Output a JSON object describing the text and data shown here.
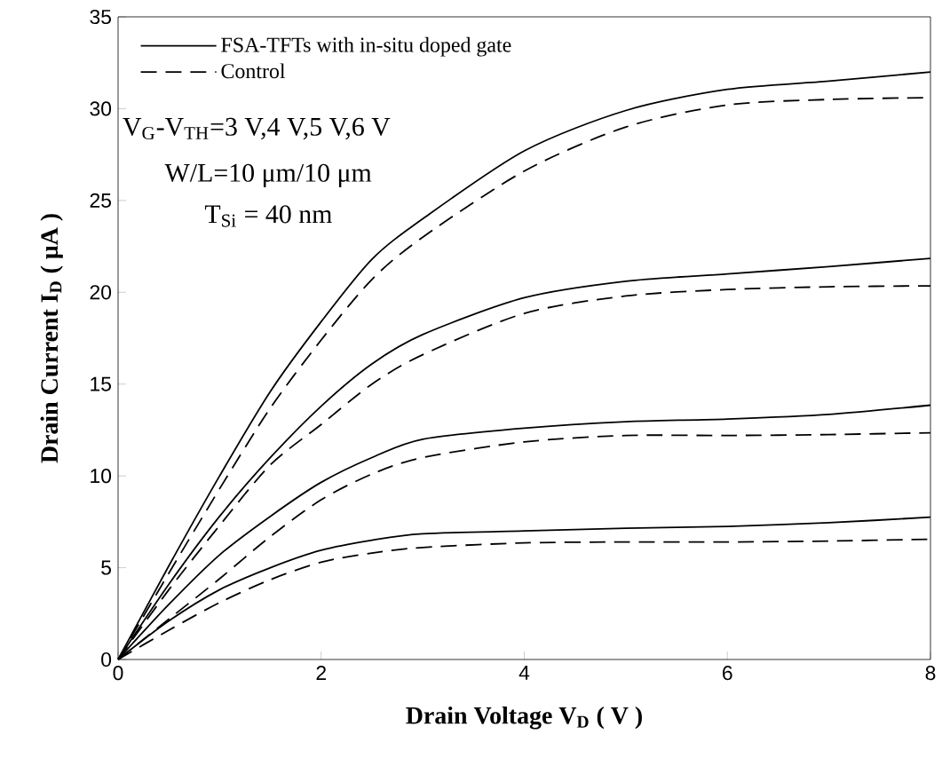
{
  "chart_data": {
    "type": "line",
    "xlabel": "Drain Voltage V$_{D}$ ( V )",
    "ylabel": "Drain Current I$_{D}$ ( μA )",
    "x": [
      0,
      0.5,
      1,
      1.5,
      2,
      2.5,
      3,
      4,
      5,
      6,
      7,
      8
    ],
    "series": [
      {
        "name": "FSA-TFTs with in-situ doped gate",
        "color": "#000000",
        "line_style": "solid",
        "values": [
          0,
          5.1,
          10.0,
          14.6,
          18.4,
          21.8,
          24.0,
          27.7,
          29.9,
          31.05,
          31.5,
          32.0
        ]
      },
      {
        "name": "Control",
        "color": "#000000",
        "line_style": "dashed",
        "values": [
          0,
          4.7,
          9.3,
          13.7,
          17.4,
          20.7,
          23.0,
          26.6,
          29.0,
          30.2,
          30.5,
          30.6
        ]
      },
      {
        "color": "#000000",
        "line_style": "solid",
        "values": [
          0,
          4.1,
          7.8,
          11.0,
          13.8,
          16.1,
          17.7,
          19.7,
          20.6,
          21.0,
          21.4,
          21.85
        ]
      },
      {
        "color": "#000000",
        "line_style": "dashed",
        "values": [
          0,
          3.8,
          7.3,
          10.6,
          12.8,
          15.0,
          16.6,
          18.85,
          19.8,
          20.15,
          20.3,
          20.35
        ]
      },
      {
        "color": "#000000",
        "line_style": "solid",
        "values": [
          0,
          3.0,
          5.7,
          7.8,
          9.65,
          11.0,
          12.0,
          12.6,
          12.95,
          13.1,
          13.35,
          13.85
        ]
      },
      {
        "color": "#000000",
        "line_style": "dashed",
        "values": [
          0,
          2.2,
          4.4,
          6.7,
          8.7,
          10.1,
          11.0,
          11.85,
          12.2,
          12.2,
          12.25,
          12.35
        ]
      },
      {
        "color": "#000000",
        "line_style": "solid",
        "values": [
          0,
          2.1,
          3.8,
          5.0,
          5.95,
          6.5,
          6.85,
          7.0,
          7.15,
          7.25,
          7.45,
          7.75
        ]
      },
      {
        "color": "#000000",
        "line_style": "dashed",
        "values": [
          0,
          1.6,
          3.1,
          4.35,
          5.3,
          5.8,
          6.1,
          6.35,
          6.4,
          6.4,
          6.45,
          6.55
        ]
      }
    ],
    "xlim": [
      0,
      8
    ],
    "xticks": [
      0,
      2,
      4,
      6,
      8
    ],
    "ylim": [
      0,
      35
    ],
    "yticks": [
      0,
      5,
      10,
      15,
      20,
      25,
      30,
      35
    ],
    "legend": "top left",
    "grid": false,
    "marker": "none",
    "annotations": [
      "V$_{G}$-V$_{TH}$=3 V,4 V,5 V,6 V",
      "W/L=10 μm/10 μm",
      "T$_{Si}$ = 40 nm"
    ]
  }
}
